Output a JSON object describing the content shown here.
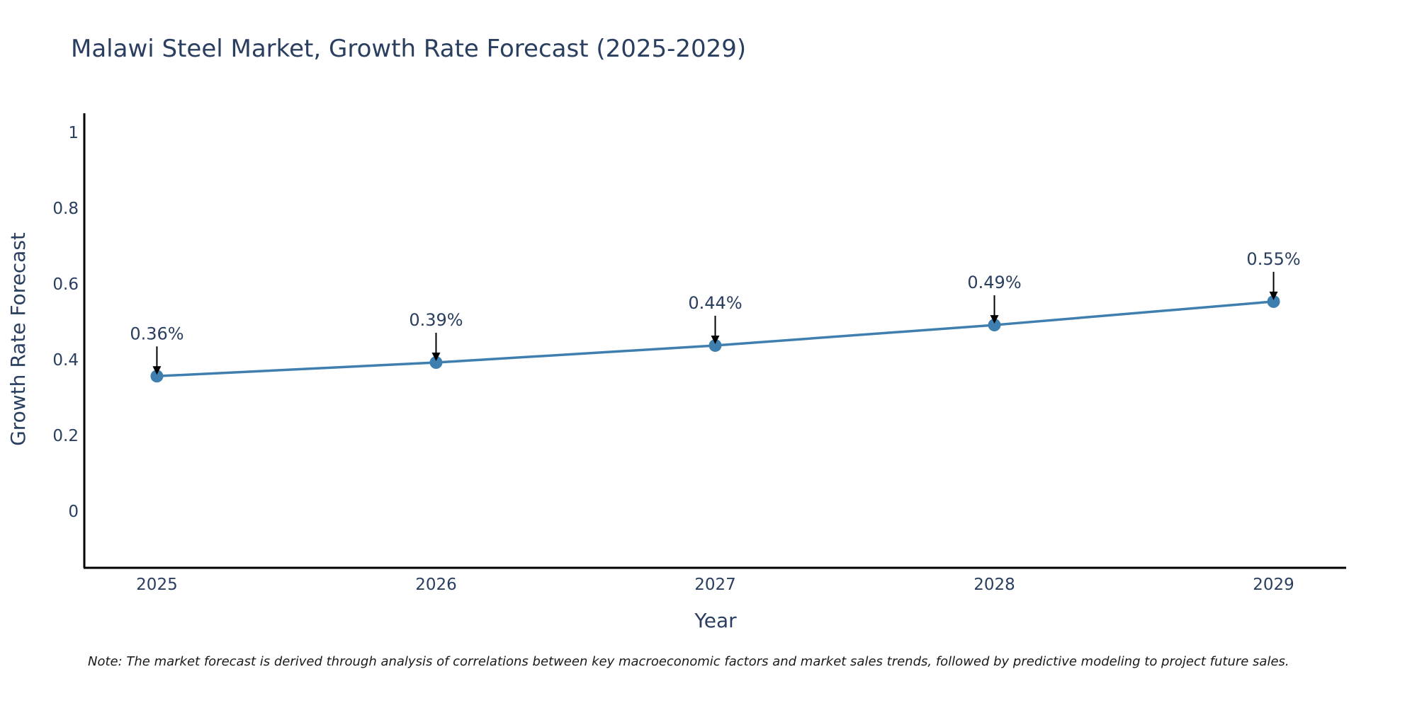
{
  "chart_data": {
    "type": "line",
    "title": "Malawi Steel Market, Growth Rate Forecast (2025-2029)",
    "xlabel": "Year",
    "ylabel": "Growth Rate Forecast",
    "x": [
      2025,
      2026,
      2027,
      2028,
      2029
    ],
    "x_tick_labels": [
      "2025",
      "2026",
      "2027",
      "2028",
      "2029"
    ],
    "values": [
      0.356,
      0.392,
      0.437,
      0.491,
      0.553
    ],
    "data_labels": [
      "0.36%",
      "0.39%",
      "0.44%",
      "0.49%",
      "0.55%"
    ],
    "y_ticks": [
      0,
      0.2,
      0.4,
      0.6,
      0.8,
      1
    ],
    "y_tick_labels": [
      "0",
      "0.2",
      "0.4",
      "0.6",
      "0.8",
      "1"
    ],
    "ylim": [
      -0.15,
      1.05
    ],
    "xlim": [
      2024.74,
      2029.26
    ],
    "grid": false,
    "line_color": "#3f7fb0",
    "marker_color": "#3f7fb0",
    "arrow_color": "#000000",
    "note": "Note: The market forecast is derived through analysis of correlations between key macroeconomic factors and market sales trends, followed by predictive modeling to project future sales."
  }
}
